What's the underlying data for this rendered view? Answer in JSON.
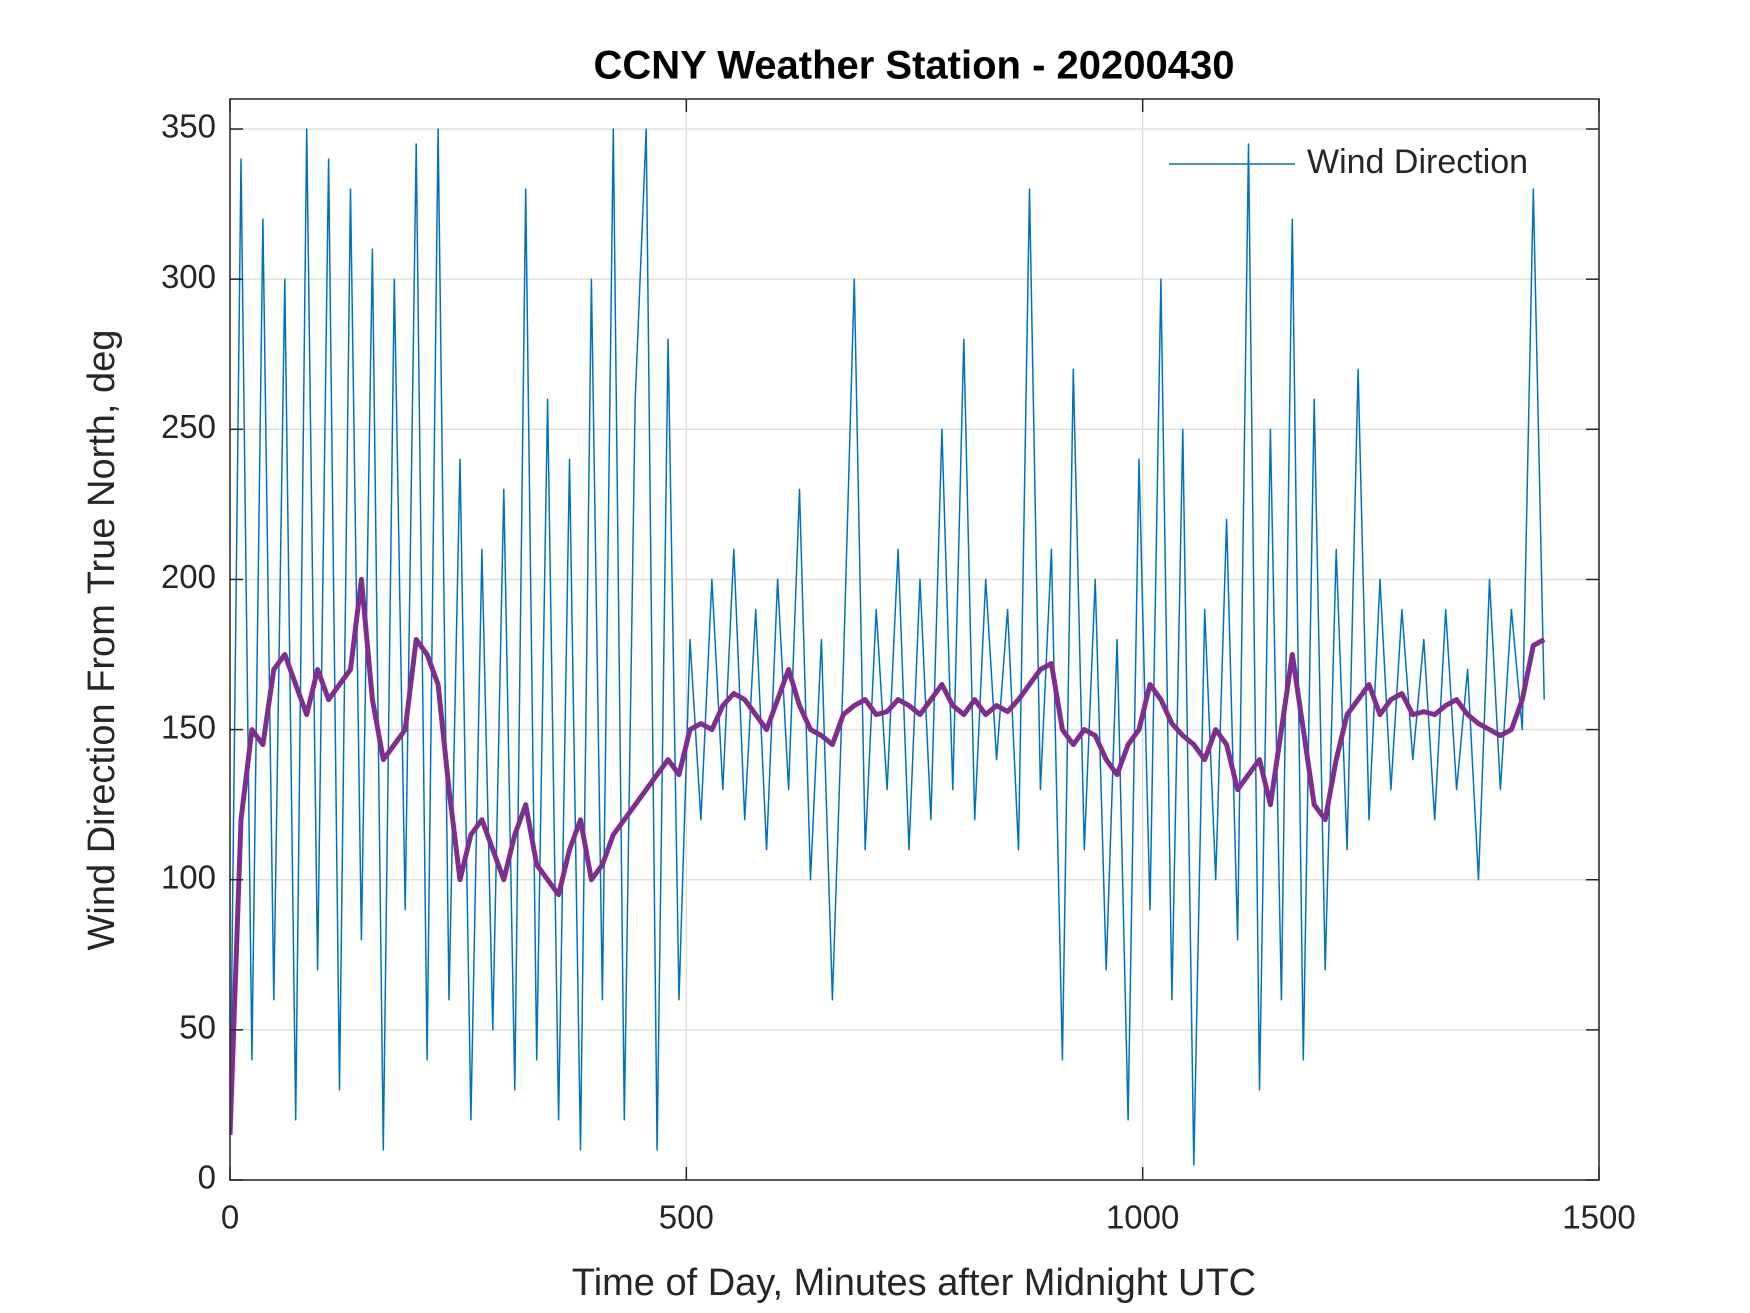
{
  "chart_data": {
    "type": "line",
    "title": "CCNY Weather Station - 20200430",
    "x_label": "Time of Day, Minutes after Midnight UTC",
    "y_label": "Wind Direction From True North, deg",
    "x": [
      0,
      12,
      24,
      36,
      48,
      60,
      72,
      84,
      96,
      108,
      120,
      132,
      144,
      156,
      168,
      180,
      192,
      204,
      216,
      228,
      240,
      252,
      264,
      276,
      288,
      300,
      312,
      324,
      336,
      348,
      360,
      372,
      384,
      396,
      408,
      420,
      432,
      444,
      456,
      468,
      480,
      492,
      504,
      516,
      528,
      540,
      552,
      564,
      576,
      588,
      600,
      612,
      624,
      636,
      648,
      660,
      672,
      684,
      696,
      708,
      720,
      732,
      744,
      756,
      768,
      780,
      792,
      804,
      816,
      828,
      840,
      852,
      864,
      876,
      888,
      900,
      912,
      924,
      936,
      948,
      960,
      972,
      984,
      996,
      1008,
      1020,
      1032,
      1044,
      1056,
      1068,
      1080,
      1092,
      1104,
      1116,
      1128,
      1140,
      1152,
      1164,
      1176,
      1188,
      1200,
      1212,
      1224,
      1236,
      1248,
      1260,
      1272,
      1284,
      1296,
      1308,
      1320,
      1332,
      1344,
      1356,
      1368,
      1380,
      1392,
      1404,
      1416,
      1428,
      1440
    ],
    "series": [
      {
        "name": "Wind Direction",
        "color": "#0072bd",
        "width": 1.5,
        "values": [
          15,
          340,
          40,
          320,
          60,
          300,
          20,
          350,
          70,
          340,
          30,
          330,
          80,
          310,
          10,
          300,
          90,
          345,
          40,
          350,
          60,
          240,
          20,
          210,
          50,
          230,
          30,
          330,
          40,
          260,
          20,
          240,
          10,
          300,
          60,
          350,
          20,
          260,
          350,
          10,
          280,
          60,
          180,
          120,
          200,
          130,
          210,
          120,
          190,
          110,
          200,
          130,
          230,
          100,
          180,
          60,
          170,
          300,
          110,
          190,
          130,
          210,
          110,
          200,
          120,
          250,
          130,
          280,
          120,
          200,
          140,
          190,
          110,
          330,
          130,
          210,
          40,
          270,
          110,
          200,
          70,
          180,
          20,
          240,
          90,
          300,
          60,
          250,
          5,
          190,
          100,
          220,
          80,
          345,
          30,
          250,
          60,
          320,
          40,
          260,
          70,
          210,
          110,
          270,
          120,
          200,
          130,
          190,
          140,
          180,
          120,
          190,
          130,
          170,
          100,
          200,
          130,
          190,
          150,
          330,
          160
        ]
      },
      {
        "color": "#7e2f8e",
        "width": 5,
        "values": [
          15,
          120,
          150,
          145,
          170,
          175,
          165,
          155,
          170,
          160,
          165,
          170,
          200,
          160,
          140,
          145,
          150,
          180,
          175,
          165,
          130,
          100,
          115,
          120,
          110,
          100,
          115,
          125,
          105,
          100,
          95,
          110,
          120,
          100,
          105,
          115,
          120,
          125,
          130,
          135,
          140,
          135,
          150,
          152,
          150,
          158,
          162,
          160,
          155,
          150,
          160,
          170,
          158,
          150,
          148,
          145,
          155,
          158,
          160,
          155,
          156,
          160,
          158,
          155,
          160,
          165,
          158,
          155,
          160,
          155,
          158,
          156,
          160,
          165,
          170,
          172,
          150,
          145,
          150,
          148,
          140,
          135,
          145,
          150,
          165,
          160,
          152,
          148,
          145,
          140,
          150,
          145,
          130,
          135,
          140,
          125,
          150,
          175,
          150,
          125,
          120,
          140,
          155,
          160,
          165,
          155,
          160,
          162,
          155,
          156,
          155,
          158,
          160,
          155,
          152,
          150,
          148,
          150,
          160,
          178,
          180
        ]
      }
    ],
    "xlim": [
      0,
      1500
    ],
    "xticks": [
      0,
      500,
      1000,
      1500
    ],
    "ylim": [
      0,
      360
    ],
    "yticks": [
      0,
      50,
      100,
      150,
      200,
      250,
      300,
      350
    ],
    "grid": true,
    "legend": "top-right"
  }
}
